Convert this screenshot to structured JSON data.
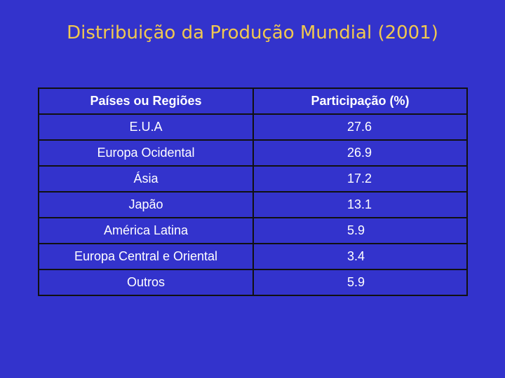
{
  "title": "Distribuição da Produção Mundial (2001)",
  "table": {
    "headers": [
      "Países ou Regiões",
      "Participação (%)"
    ],
    "rows": [
      [
        "E.U.A",
        "27.6"
      ],
      [
        "Europa Ocidental",
        "26.9"
      ],
      [
        "Ásia",
        "17.2"
      ],
      [
        "Japão",
        "13.1"
      ],
      [
        "América Latina",
        "5.9"
      ],
      [
        "Europa Central e Oriental",
        "3.4"
      ],
      [
        "Outros",
        "5.9"
      ]
    ]
  },
  "colors": {
    "background": "#3333cc",
    "title": "#f0c850",
    "text": "#ffffff",
    "border": "#111111"
  }
}
